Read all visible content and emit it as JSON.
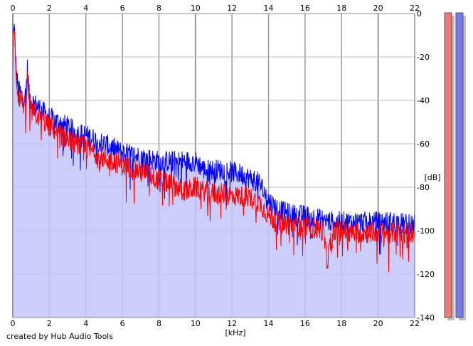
{
  "chart_data": {
    "type": "line",
    "xlabel": "[kHz]",
    "ylabel": "[dB]",
    "xlim": [
      0,
      22
    ],
    "ylim": [
      -140,
      0
    ],
    "x_ticks": [
      0,
      2,
      4,
      6,
      8,
      10,
      12,
      14,
      16,
      18,
      20,
      22
    ],
    "y_ticks": [
      0,
      -20,
      -40,
      -60,
      -80,
      -100,
      -120,
      -140
    ],
    "grid": true,
    "fill_color": "#c4c4fa",
    "series": [
      {
        "color": "#ff0000",
        "x": [
          0,
          0.05,
          0.1,
          0.2,
          0.3,
          0.5,
          0.7,
          0.8,
          0.9,
          1,
          1.5,
          2,
          2.5,
          3,
          3.5,
          4,
          4.5,
          5,
          5.5,
          6,
          6.5,
          7,
          7.5,
          8,
          8.5,
          9,
          9.5,
          10,
          10.5,
          11,
          11.5,
          12,
          12.5,
          13,
          13.5,
          14,
          14.5,
          15,
          15.5,
          16,
          16.5,
          17,
          17.2,
          17.5,
          18,
          18.5,
          19,
          19.5,
          20,
          20.5,
          21,
          21.5,
          22
        ],
        "values": [
          -30,
          -3,
          -12,
          -30,
          -38,
          -40,
          -44,
          -30,
          -40,
          -45,
          -48,
          -52,
          -55,
          -58,
          -60,
          -62,
          -64,
          -67,
          -68,
          -70,
          -71,
          -73,
          -74,
          -77,
          -78,
          -80,
          -82,
          -80,
          -82,
          -83,
          -83,
          -84,
          -84,
          -85,
          -87,
          -93,
          -96,
          -97,
          -98,
          -98,
          -99,
          -100,
          -115,
          -100,
          -100,
          -101,
          -101,
          -101,
          -101,
          -101,
          -101,
          -101,
          -101
        ]
      },
      {
        "color": "#0000ff",
        "x": [
          0,
          0.05,
          0.1,
          0.2,
          0.3,
          0.5,
          0.7,
          0.8,
          0.9,
          1,
          1.5,
          2,
          2.5,
          3,
          3.5,
          4,
          4.5,
          5,
          5.5,
          6,
          6.5,
          7,
          7.5,
          8,
          8.5,
          9,
          9.5,
          10,
          10.5,
          11,
          11.5,
          12,
          12.5,
          13,
          13.5,
          14,
          14.5,
          15,
          15.5,
          16,
          16.5,
          17,
          17.5,
          18,
          18.5,
          19,
          19.5,
          20,
          20.5,
          21,
          21.5,
          22
        ],
        "values": [
          -30,
          -3,
          -10,
          -28,
          -35,
          -38,
          -38,
          -25,
          -38,
          -40,
          -44,
          -48,
          -50,
          -52,
          -55,
          -56,
          -58,
          -60,
          -62,
          -64,
          -65,
          -66,
          -67,
          -68,
          -68,
          -68,
          -68,
          -68,
          -72,
          -72,
          -72,
          -73,
          -74,
          -76,
          -78,
          -86,
          -90,
          -92,
          -93,
          -93,
          -94,
          -95,
          -96,
          -96,
          -96,
          -96,
          -96,
          -96,
          -96,
          -96,
          -97,
          -97
        ]
      }
    ]
  },
  "meters": {
    "left_color": "#f07878",
    "right_color": "#7878f0"
  },
  "credit": "created by Hub Audio Tools"
}
